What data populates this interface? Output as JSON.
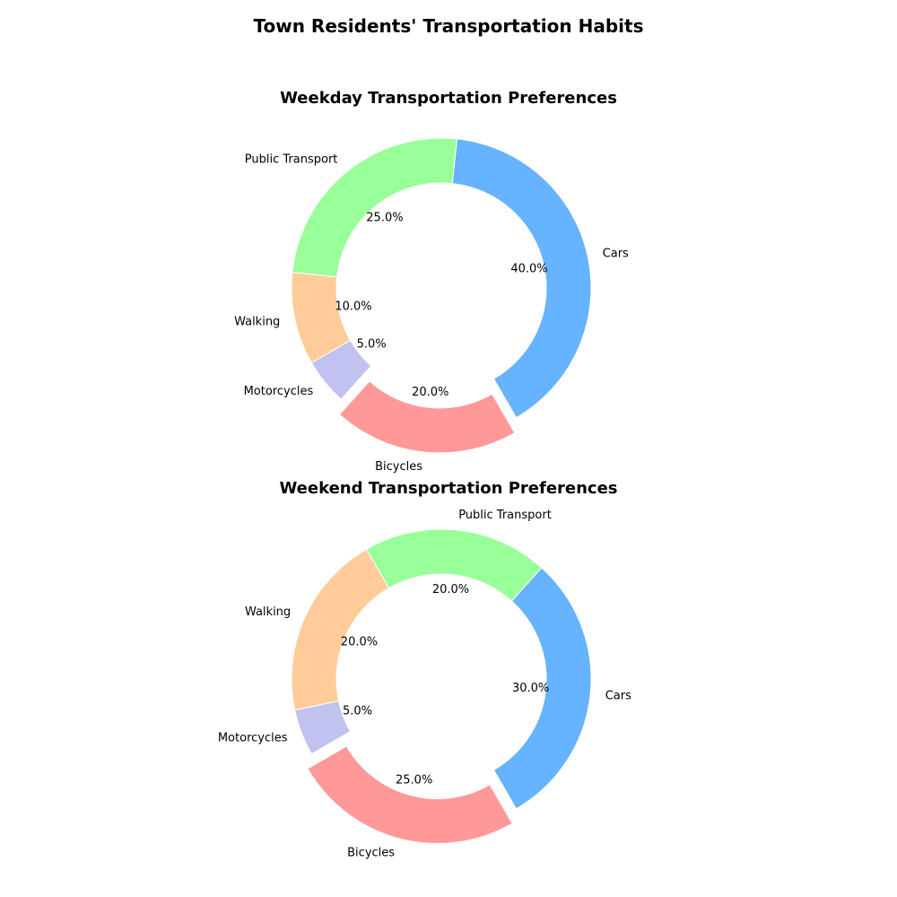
{
  "figure": {
    "title": "Town Residents' Transportation Habits"
  },
  "chart_data": [
    {
      "type": "pie",
      "donut": true,
      "title": "Weekday Transportation Preferences",
      "categories": [
        "Cars",
        "Public Transport",
        "Walking",
        "Motorcycles",
        "Bicycles"
      ],
      "values": [
        40.0,
        25.0,
        10.0,
        5.0,
        20.0
      ],
      "value_labels": [
        "40.0%",
        "25.0%",
        "10.0%",
        "5.0%",
        "20.0%"
      ],
      "colors": [
        "#66b3ff",
        "#99ff99",
        "#ffcc99",
        "#c2c2f0",
        "#ff9999"
      ],
      "exploded": [
        "Bicycles"
      ],
      "legend": "none"
    },
    {
      "type": "pie",
      "donut": true,
      "title": "Weekend Transportation Preferences",
      "categories": [
        "Cars",
        "Public Transport",
        "Walking",
        "Motorcycles",
        "Bicycles"
      ],
      "values": [
        30.0,
        20.0,
        20.0,
        5.0,
        25.0
      ],
      "value_labels": [
        "30.0%",
        "20.0%",
        "20.0%",
        "5.0%",
        "25.0%"
      ],
      "colors": [
        "#66b3ff",
        "#99ff99",
        "#ffcc99",
        "#c2c2f0",
        "#ff9999"
      ],
      "exploded": [
        "Bicycles"
      ],
      "legend": "none"
    }
  ]
}
